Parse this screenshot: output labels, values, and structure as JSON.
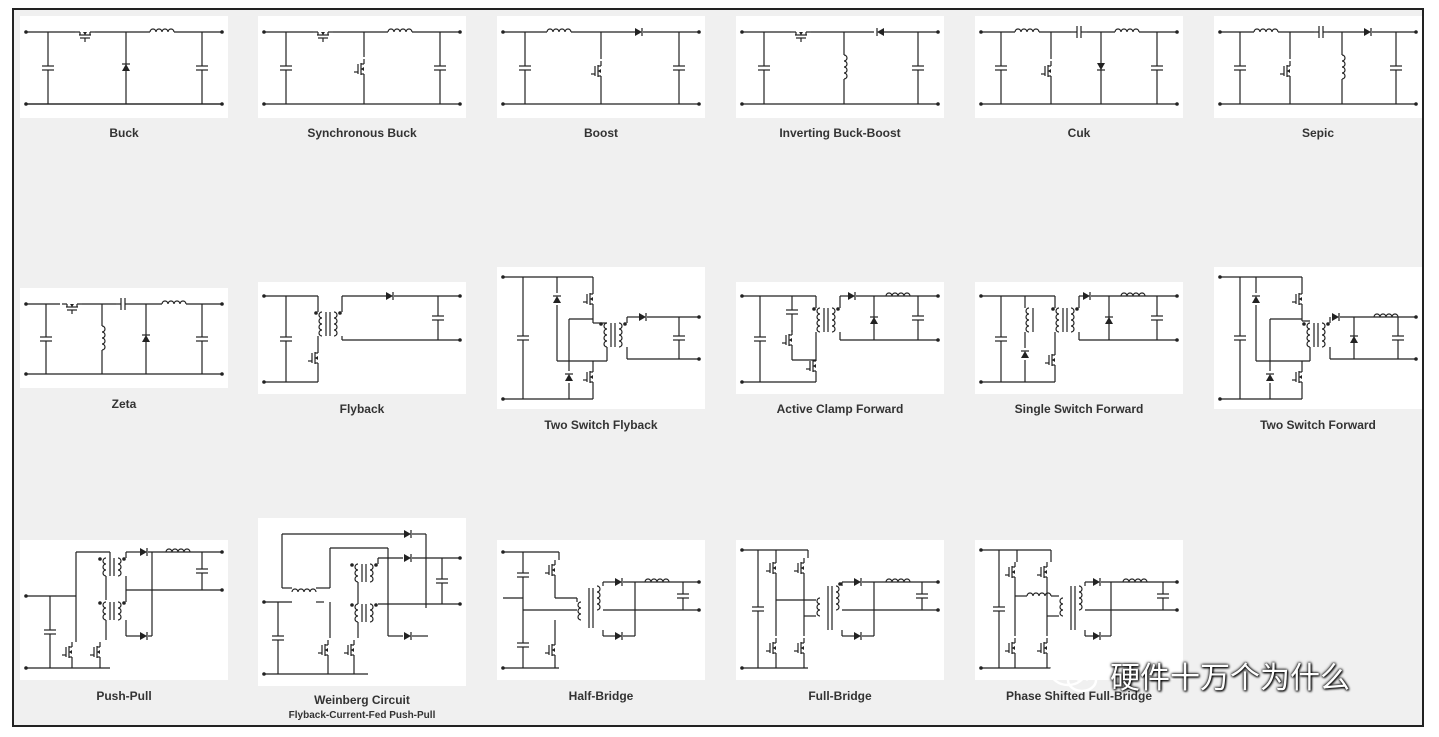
{
  "topologies": [
    {
      "label": "Buck"
    },
    {
      "label": "Synchronous Buck"
    },
    {
      "label": "Boost"
    },
    {
      "label": "Inverting Buck-Boost"
    },
    {
      "label": "Cuk"
    },
    {
      "label": "Sepic"
    },
    {
      "label": "Zeta"
    },
    {
      "label": "Flyback"
    },
    {
      "label": "Two Switch Flyback"
    },
    {
      "label": "Active Clamp Forward"
    },
    {
      "label": "Single Switch Forward"
    },
    {
      "label": "Two Switch Forward"
    },
    {
      "label": "Push-Pull"
    },
    {
      "label": "Weinberg Circuit",
      "sublabel": "Flyback-Current-Fed Push-Pull"
    },
    {
      "label": "Half-Bridge"
    },
    {
      "label": "Full-Bridge"
    },
    {
      "label": "Phase Shifted Full-Bridge"
    }
  ],
  "watermark": {
    "text": "硬件十万个为什么",
    "icon": "wechat-icon"
  },
  "colors": {
    "line": "#222222",
    "panel": "#f0f0f0",
    "card": "#ffffff",
    "text": "#333333"
  }
}
